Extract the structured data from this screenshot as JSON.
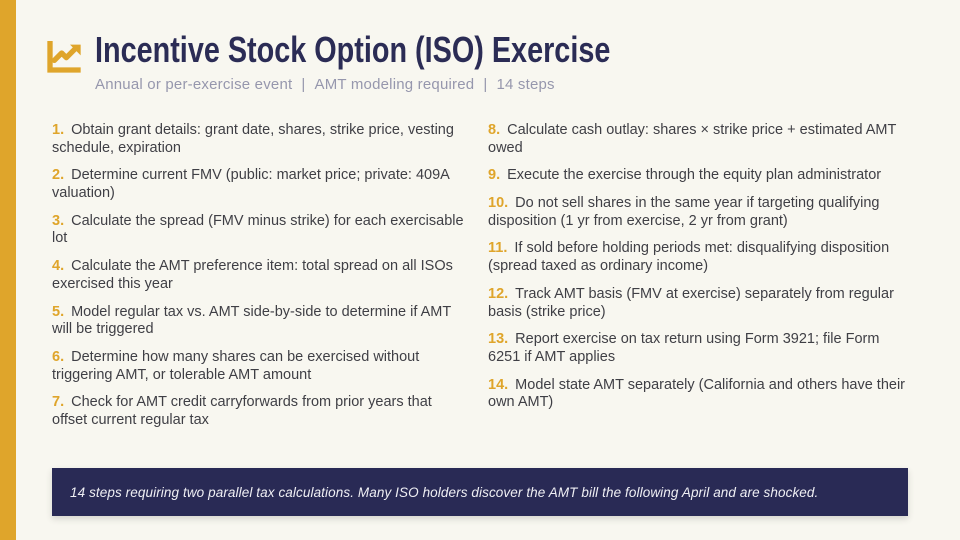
{
  "slide": {
    "title": "Incentive Stock Option (ISO) Exercise",
    "subtitle_parts": [
      "Annual or per-exercise event",
      "AMT modeling required",
      "14 steps"
    ],
    "subtitle_separator": "|",
    "header_icon": "chart-line-icon"
  },
  "steps": [
    {
      "num": "1.",
      "text": "Obtain grant details: grant date, shares, strike price, vesting schedule, expiration"
    },
    {
      "num": "2.",
      "text": "Determine current FMV (public: market price; private: 409A valuation)"
    },
    {
      "num": "3.",
      "text": "Calculate the spread (FMV minus strike) for each exercisable lot"
    },
    {
      "num": "4.",
      "text": "Calculate the AMT preference item: total spread on all ISOs exercised this year"
    },
    {
      "num": "5.",
      "text": "Model regular tax vs. AMT side-by-side to determine if AMT will be triggered"
    },
    {
      "num": "6.",
      "text": "Determine how many shares can be exercised without triggering AMT, or tolerable AMT amount"
    },
    {
      "num": "7.",
      "text": "Check for AMT credit carryforwards from prior years that offset current regular tax"
    },
    {
      "num": "8.",
      "text": "Calculate cash outlay: shares × strike price + estimated AMT owed"
    },
    {
      "num": "9.",
      "text": "Execute the exercise through the equity plan administrator"
    },
    {
      "num": "10.",
      "text": "Do not sell shares in the same year if targeting qualifying disposition (1 yr from exercise, 2 yr from grant)"
    },
    {
      "num": "11.",
      "text": "If sold before holding periods met: disqualifying disposition (spread taxed as ordinary income)"
    },
    {
      "num": "12.",
      "text": "Track AMT basis (FMV at exercise) separately from regular basis (strike price)"
    },
    {
      "num": "13.",
      "text": "Report exercise on tax return using Form 3921; file Form 6251 if AMT applies"
    },
    {
      "num": "14.",
      "text": "Model state AMT separately (California and others have their own AMT)"
    }
  ],
  "column_split": 7,
  "footer": {
    "note": "14 steps requiring two parallel tax calculations. Many ISO holders discover the AMT bill the following April and are shocked."
  },
  "colors": {
    "accent_gold": "#DFA52B",
    "navy": "#2A2B55",
    "background": "#F8F7F0",
    "body_text": "#3F3F45",
    "subtitle_text": "#9697AD",
    "footer_text": "#EFEFF4"
  }
}
